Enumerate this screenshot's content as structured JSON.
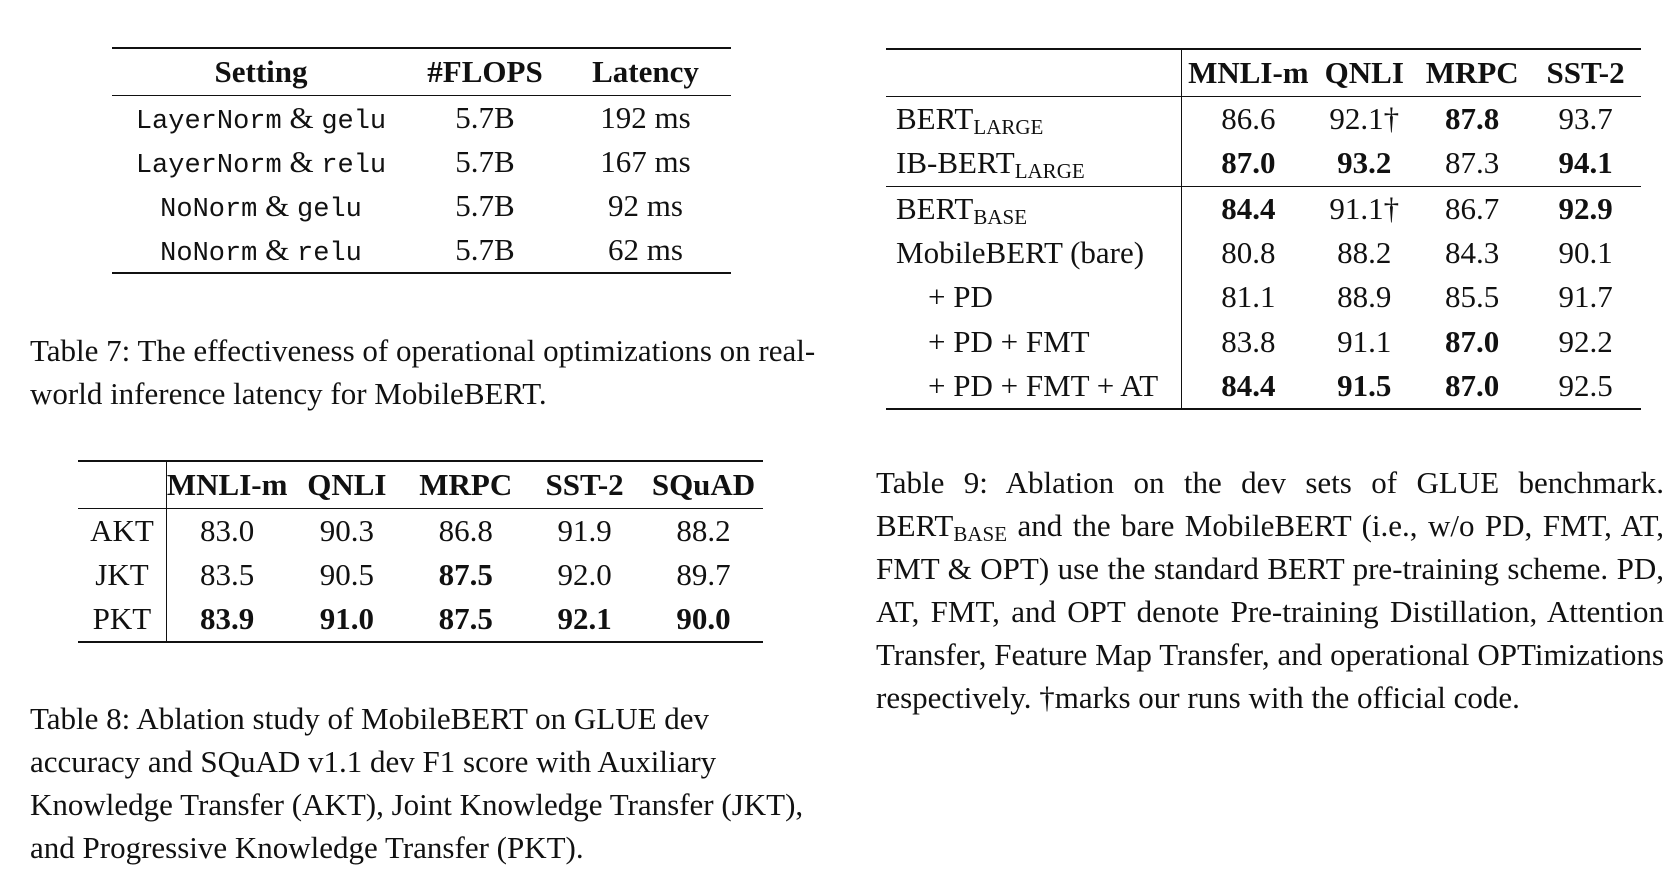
{
  "table7": {
    "headers": [
      "Setting",
      "#FLOPS",
      "Latency"
    ],
    "rows": [
      {
        "norm": "LayerNorm",
        "amp": "&",
        "act": "gelu",
        "flops": "5.7B",
        "latency": "192 ms"
      },
      {
        "norm": "LayerNorm",
        "amp": "&",
        "act": "relu",
        "flops": "5.7B",
        "latency": "167 ms"
      },
      {
        "norm": "NoNorm",
        "amp": "&",
        "act": "gelu",
        "flops": "5.7B",
        "latency": "92 ms"
      },
      {
        "norm": "NoNorm",
        "amp": "&",
        "act": "relu",
        "flops": "5.7B",
        "latency": "62 ms"
      }
    ],
    "caption": "Table 7: The effectiveness of operational optimizations on real-world inference latency for MobileBERT."
  },
  "table8": {
    "headers": [
      "",
      "MNLI-m",
      "QNLI",
      "MRPC",
      "SST-2",
      "SQuAD"
    ],
    "rows": [
      {
        "label": "AKT",
        "values": [
          "83.0",
          "90.3",
          "86.8",
          "91.9",
          "88.2"
        ],
        "bold": [
          false,
          false,
          false,
          false,
          false
        ]
      },
      {
        "label": "JKT",
        "values": [
          "83.5",
          "90.5",
          "87.5",
          "92.0",
          "89.7"
        ],
        "bold": [
          false,
          false,
          true,
          false,
          false
        ]
      },
      {
        "label": "PKT",
        "values": [
          "83.9",
          "91.0",
          "87.5",
          "92.1",
          "90.0"
        ],
        "bold": [
          true,
          true,
          true,
          true,
          true
        ]
      }
    ],
    "caption": "Table 8: Ablation study of MobileBERT on GLUE dev accuracy and SQuAD v1.1 dev F1 score with Auxiliary Knowledge Transfer (AKT), Joint Knowledge Transfer (JKT), and Progressive Knowledge Transfer (PKT)."
  },
  "table9": {
    "headers": [
      "",
      "MNLI-m",
      "QNLI",
      "MRPC",
      "SST-2"
    ],
    "rows": [
      {
        "label": "BERT",
        "sub": "LARGE",
        "values": [
          "86.6",
          "92.1†",
          "87.8",
          "93.7"
        ],
        "bold": [
          false,
          false,
          true,
          false
        ]
      },
      {
        "label": "IB-BERT",
        "sub": "LARGE",
        "values": [
          "87.0",
          "93.2",
          "87.3",
          "94.1"
        ],
        "bold": [
          true,
          true,
          false,
          true
        ]
      },
      {
        "label": "BERT",
        "sub": "BASE",
        "values": [
          "84.4",
          "91.1†",
          "86.7",
          "92.9"
        ],
        "bold": [
          true,
          false,
          false,
          true
        ]
      },
      {
        "label": "MobileBERT (bare)",
        "sub": "",
        "values": [
          "80.8",
          "88.2",
          "84.3",
          "90.1"
        ],
        "bold": [
          false,
          false,
          false,
          false
        ]
      },
      {
        "label": "+ PD",
        "sub": "",
        "values": [
          "81.1",
          "88.9",
          "85.5",
          "91.7"
        ],
        "bold": [
          false,
          false,
          false,
          false
        ]
      },
      {
        "label": "+ PD + FMT",
        "sub": "",
        "values": [
          "83.8",
          "91.1",
          "87.0",
          "92.2"
        ],
        "bold": [
          false,
          false,
          true,
          false
        ]
      },
      {
        "label": "+ PD + FMT + AT",
        "sub": "",
        "values": [
          "84.4",
          "91.5",
          "87.0",
          "92.5"
        ],
        "bold": [
          true,
          true,
          true,
          false
        ]
      }
    ],
    "caption": {
      "prefix": "Table 9: Ablation on the dev sets of GLUE benchmark. BERT",
      "sub": "BASE",
      "suffix": " and the bare MobileBERT (i.e., w/o PD, FMT, AT, FMT & OPT) use the standard BERT pre-training scheme. PD, AT, FMT, and OPT denote Pre-training Distillation, Attention Transfer, Feature Map Transfer, and operational OPTimizations respectively. †marks our runs with the official code."
    }
  }
}
